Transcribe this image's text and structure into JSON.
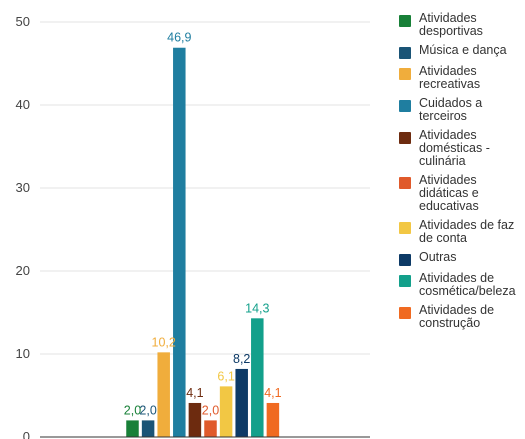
{
  "chart_data": {
    "type": "bar",
    "title": "",
    "xlabel": "",
    "ylabel": "",
    "ylim": [
      0,
      50
    ],
    "yticks": [
      "0",
      "10",
      "20",
      "30",
      "40",
      "50"
    ],
    "grid": true,
    "legend_position": "right",
    "series": [
      {
        "name": "Atividades desportivas",
        "value": 2.0,
        "label": "2,0",
        "color": "#188038"
      },
      {
        "name": "Música e dança",
        "value": 2.0,
        "label": "2,0",
        "color": "#1a5476"
      },
      {
        "name": "Atividades recreativas",
        "value": 10.2,
        "label": "10,2",
        "color": "#f0ad3c"
      },
      {
        "name": "Cuidados a terceiros",
        "value": 46.9,
        "label": "46,9",
        "color": "#1f7ea0"
      },
      {
        "name": "Atividades domésticas - culinária",
        "value": 4.1,
        "label": "4,1",
        "color": "#6d2b0f"
      },
      {
        "name": "Atividades didáticas e educativas",
        "value": 2.0,
        "label": "2,0",
        "color": "#e05a2b"
      },
      {
        "name": "Atividades de faz de conta",
        "value": 6.1,
        "label": "6,1",
        "color": "#f2c744"
      },
      {
        "name": "Outras",
        "value": 8.2,
        "label": "8,2",
        "color": "#0d3a66"
      },
      {
        "name": "Atividades de cosmética/beleza",
        "value": 14.3,
        "label": "14,3",
        "color": "#13a08b"
      },
      {
        "name": "Atividades de construção",
        "value": 4.1,
        "label": "4,1",
        "color": "#f06a21"
      }
    ]
  }
}
